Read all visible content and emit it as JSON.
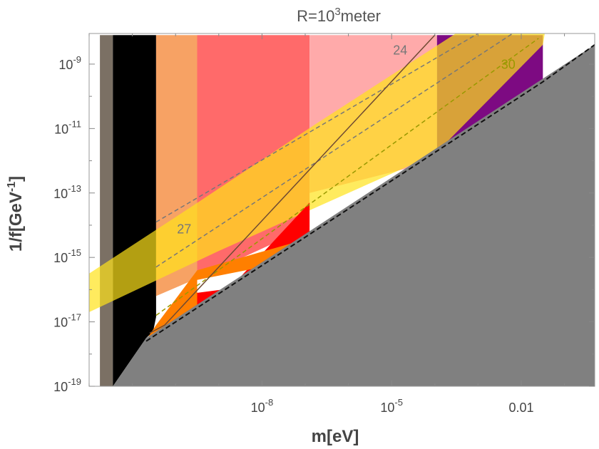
{
  "chart_data": {
    "type": "area",
    "title": {
      "prefix": "R=10",
      "sup": "3",
      "suffix": "meter"
    },
    "xlabel": "m[eV]",
    "ylabel": {
      "base": "1/f[GeV",
      "sup": "-1",
      "close": "]"
    },
    "x_scale": "log10",
    "y_scale": "log10",
    "xlim_log10": [
      -12.0,
      -0.3
    ],
    "ylim_log10": [
      -19.0,
      -8.05
    ],
    "x_ticks": [
      {
        "log10": -8,
        "label_base": "10",
        "label_exp": "-8"
      },
      {
        "log10": -5,
        "label_base": "10",
        "label_exp": "-5"
      },
      {
        "log10": -2,
        "label": "0.01"
      }
    ],
    "y_ticks": [
      {
        "log10": -9,
        "label_base": "10",
        "label_exp": "-9"
      },
      {
        "log10": -11,
        "label_base": "10",
        "label_exp": "-11"
      },
      {
        "log10": -13,
        "label_base": "10",
        "label_exp": "-13"
      },
      {
        "log10": -15,
        "label_base": "10",
        "label_exp": "-15"
      },
      {
        "log10": -17,
        "label_base": "10",
        "label_exp": "-17"
      },
      {
        "log10": -19,
        "label_base": "10",
        "label_exp": "-19"
      }
    ],
    "regions": [
      {
        "name": "brown-exclusion-band",
        "color": "#7b7064",
        "opacity": 1.0,
        "points": [
          [
            -11.75,
            -8.1
          ],
          [
            -11.45,
            -8.1
          ],
          [
            -11.45,
            -19.0
          ],
          [
            -11.75,
            -19.0
          ]
        ]
      },
      {
        "name": "black-exclusion-band",
        "color": "#000000",
        "opacity": 1.0,
        "points": [
          [
            -11.45,
            -8.1
          ],
          [
            -10.45,
            -8.1
          ],
          [
            -10.45,
            -16.85
          ],
          [
            -10.52,
            -17.3
          ],
          [
            -10.68,
            -17.5
          ],
          [
            -11.45,
            -19.0
          ]
        ]
      },
      {
        "name": "orange-light-band",
        "color": "#f7a264",
        "opacity": 1.0,
        "points": [
          [
            -10.45,
            -8.1
          ],
          [
            -9.5,
            -8.1
          ],
          [
            -9.5,
            -15.65
          ],
          [
            -10.45,
            -16.2
          ]
        ]
      },
      {
        "name": "red-light-band",
        "color": "#ff6a6a",
        "opacity": 1.0,
        "points": [
          [
            -9.5,
            -8.1
          ],
          [
            -6.9,
            -8.1
          ],
          [
            -6.9,
            -14.05
          ],
          [
            -9.5,
            -15.65
          ]
        ]
      },
      {
        "name": "pink-band",
        "color": "#ffaaaa",
        "opacity": 1.0,
        "points": [
          [
            -6.9,
            -8.1
          ],
          [
            -3.95,
            -8.1
          ],
          [
            -3.95,
            -12.0
          ],
          [
            -6.9,
            -13.0
          ]
        ]
      },
      {
        "name": "purple-band",
        "color": "#7d0a82",
        "opacity": 1.0,
        "points": [
          [
            -3.95,
            -8.1
          ],
          [
            -1.5,
            -8.1
          ],
          [
            -1.5,
            -9.8
          ],
          [
            -3.95,
            -11.7
          ]
        ]
      },
      {
        "name": "yellow-sensitivity-band",
        "color": "#ffe21a",
        "opacity": 0.7,
        "points": [
          [
            -12.4,
            -17.6
          ],
          [
            -12.4,
            -16.95
          ],
          [
            -9.0,
            -14.8
          ],
          [
            -4.0,
            -11.8
          ],
          [
            -1.5,
            -8.4
          ],
          [
            -1.4,
            -7.6
          ],
          [
            -3.0,
            -7.6
          ],
          [
            -6.8,
            -10.9
          ],
          [
            -9.6,
            -13.4
          ],
          [
            -12.0,
            -15.5
          ],
          [
            -12.4,
            -15.5
          ]
        ]
      },
      {
        "name": "red-deep-region",
        "color": "#ff0000",
        "opacity": 1.0,
        "points": [
          [
            -9.5,
            -16.1
          ],
          [
            -9.5,
            -17.05
          ],
          [
            -6.9,
            -13.3
          ],
          [
            -6.9,
            -15.65
          ]
        ]
      },
      {
        "name": "orange-deep-region",
        "color": "#ff7f00",
        "opacity": 1.0,
        "points": [
          [
            -10.45,
            -17.1
          ],
          [
            -10.65,
            -17.5
          ],
          [
            -9.5,
            -17.05
          ],
          [
            -9.5,
            -15.7
          ],
          [
            -8.0,
            -15.3
          ],
          [
            -6.9,
            -15.1
          ],
          [
            -6.9,
            -14.6
          ],
          [
            -6.9,
            -14.4
          ],
          [
            -9.5,
            -15.4
          ]
        ]
      },
      {
        "name": "gray-excluded-region",
        "color": "#808080",
        "opacity": 1.0,
        "points": [
          [
            -11.45,
            -19.0
          ],
          [
            -10.68,
            -17.5
          ],
          [
            -0.3,
            -8.4
          ],
          [
            -0.3,
            -19.0
          ]
        ]
      }
    ],
    "lines": [
      {
        "name": "boundary-dashed-line",
        "color": "#111111",
        "dash": "7,4",
        "width": 2.0,
        "points": [
          [
            -10.68,
            -17.6
          ],
          [
            -1.5,
            -9.55
          ],
          [
            -0.3,
            -8.4
          ]
        ]
      },
      {
        "name": "contour-24-line",
        "color": "#777777",
        "dash": "6,4",
        "width": 1.5,
        "points": [
          [
            -10.45,
            -13.9
          ],
          [
            -3.0,
            -8.05
          ]
        ]
      },
      {
        "name": "contour-27-line",
        "color": "#777777",
        "dash": "6,4",
        "width": 1.5,
        "points": [
          [
            -10.45,
            -15.3
          ],
          [
            -2.2,
            -8.05
          ]
        ]
      },
      {
        "name": "contour-30-line",
        "color": "#999900",
        "dash": "6,4",
        "width": 1.5,
        "points": [
          [
            -10.45,
            -16.8
          ],
          [
            -1.6,
            -8.2
          ]
        ]
      },
      {
        "name": "solid-diagonal-line",
        "color": "#6f4a32",
        "dash": "",
        "width": 1.5,
        "points": [
          [
            -10.6,
            -17.35
          ],
          [
            -10.25,
            -17.1
          ],
          [
            -4.0,
            -8.1
          ]
        ]
      }
    ],
    "annotations": [
      {
        "name": "contour-label-24",
        "text": "24",
        "x_log10": -4.8,
        "y_log10": -8.7,
        "color": "#777777"
      },
      {
        "name": "contour-label-27",
        "text": "27",
        "x_log10": -9.8,
        "y_log10": -14.25,
        "color": "#777777"
      },
      {
        "name": "contour-label-30",
        "text": "30",
        "x_log10": -2.3,
        "y_log10": -9.15,
        "color": "#999900"
      }
    ]
  }
}
